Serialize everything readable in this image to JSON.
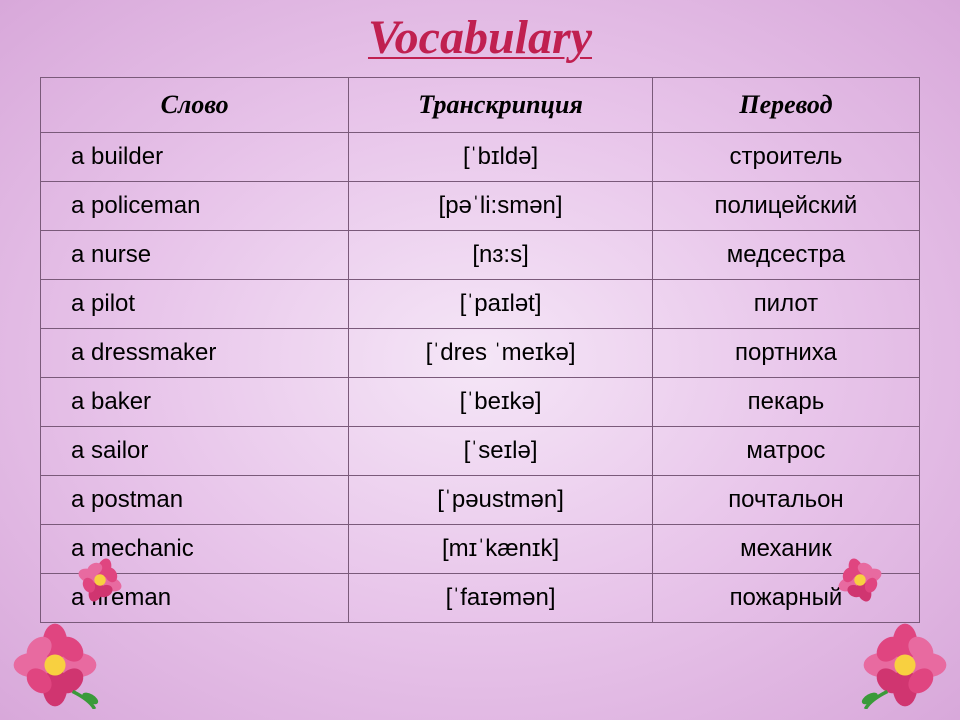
{
  "title": "Vocabulary",
  "columns": [
    "Слово",
    "Транскрипция",
    "Перевод"
  ],
  "rows": [
    {
      "word": "a builder",
      "trans": "[ˈbɪldə]",
      "trl": "строитель"
    },
    {
      "word": "a policeman",
      "trans": "[pəˈli:smən]",
      "trl": "полицейский"
    },
    {
      "word": "a nurse",
      "trans": "[nɜ:s]",
      "trl": "медсестра"
    },
    {
      "word": "a pilot",
      "trans": "[ˈpaɪlət]",
      "trl": "пилот"
    },
    {
      "word": "a dressmaker",
      "trans": "[ˈdres ˈmeɪkə]",
      "trl": "портниха"
    },
    {
      "word": "a baker",
      "trans": "[ˈbeɪkə]",
      "trl": "пекарь"
    },
    {
      "word": "a sailor",
      "trans": "[ˈseɪlə]",
      "trl": "матрос"
    },
    {
      "word": "a postman",
      "trans": "[ˈpəustmən]",
      "trl": "почтальон"
    },
    {
      "word": "a mechanic",
      "trans": "[mɪˈkænɪk]",
      "trl": "механик"
    },
    {
      "word": "a fireman",
      "trans": "[ˈfaɪəmən]",
      "trl": "пожарный"
    }
  ],
  "style": {
    "title_color": "#c02050",
    "title_fontsize": 48,
    "border_color": "#7a5a7a",
    "bg_gradient_inner": "#f5e6f7",
    "bg_gradient_mid": "#e8c5ea",
    "bg_gradient_outer": "#d8a8da",
    "cell_fontsize": 24,
    "header_fontsize": 26,
    "flower_petal_color": "#e04580",
    "flower_center_color": "#f8d040",
    "leaf_color": "#3a9a3a"
  }
}
